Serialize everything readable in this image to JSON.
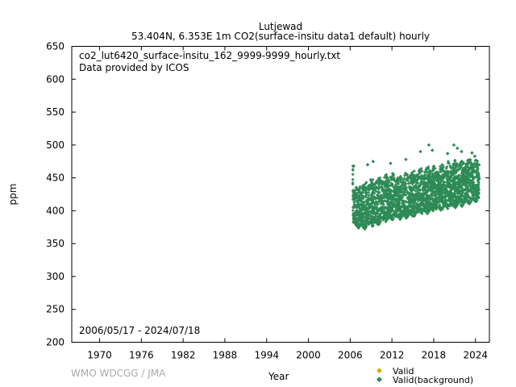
{
  "header": {
    "station": "Lutjewad",
    "subtitle": "53.404N, 6.353E 1m    CO2(surface-insitu data1 default) hourly"
  },
  "notes": {
    "filename": "co2_lut6420_surface-insitu_162_9999-9999_hourly.txt",
    "provider": "Data provided by ICOS",
    "date_range": "2006/05/17 - 2024/07/18"
  },
  "footer": {
    "credit": "WMO WDCGG / JMA"
  },
  "legend": {
    "items": [
      {
        "label": "Valid",
        "color": "#d4b000"
      },
      {
        "label": "Valid(background)",
        "color": "#2e8b57"
      }
    ]
  },
  "chart_data": {
    "type": "scatter",
    "xlabel": "Year",
    "ylabel": "ppm",
    "xlim": [
      1966,
      2026
    ],
    "ylim": [
      200,
      650
    ],
    "x_ticks": [
      1970,
      1976,
      1982,
      1988,
      1994,
      2000,
      2006,
      2012,
      2018,
      2024
    ],
    "y_ticks": [
      200,
      250,
      300,
      350,
      400,
      450,
      500,
      550,
      600,
      650
    ],
    "grid": false,
    "legend_position": "bottom-right",
    "series": [
      {
        "name": "Valid(background)",
        "color": "#2e8b57",
        "x_range": [
          2006.37,
          2024.55
        ],
        "envelope": [
          {
            "x": 2006.4,
            "low": 378,
            "high": 440
          },
          {
            "x": 2007.0,
            "low": 372,
            "high": 440
          },
          {
            "x": 2008.0,
            "low": 372,
            "high": 445
          },
          {
            "x": 2009.0,
            "low": 373,
            "high": 450
          },
          {
            "x": 2010.0,
            "low": 378,
            "high": 452
          },
          {
            "x": 2011.0,
            "low": 382,
            "high": 455
          },
          {
            "x": 2012.0,
            "low": 385,
            "high": 458
          },
          {
            "x": 2013.0,
            "low": 385,
            "high": 455
          },
          {
            "x": 2014.0,
            "low": 388,
            "high": 460
          },
          {
            "x": 2015.0,
            "low": 390,
            "high": 462
          },
          {
            "x": 2016.0,
            "low": 392,
            "high": 465
          },
          {
            "x": 2017.0,
            "low": 395,
            "high": 468
          },
          {
            "x": 2018.0,
            "low": 398,
            "high": 470
          },
          {
            "x": 2019.0,
            "low": 400,
            "high": 472
          },
          {
            "x": 2020.0,
            "low": 402,
            "high": 475
          },
          {
            "x": 2021.0,
            "low": 404,
            "high": 478
          },
          {
            "x": 2022.0,
            "low": 406,
            "high": 478
          },
          {
            "x": 2023.0,
            "low": 410,
            "high": 480
          },
          {
            "x": 2024.55,
            "low": 414,
            "high": 478
          }
        ],
        "outliers": [
          {
            "x": 2006.5,
            "y": 468
          },
          {
            "x": 2008.5,
            "y": 470
          },
          {
            "x": 2009.3,
            "y": 475
          },
          {
            "x": 2011.8,
            "y": 472
          },
          {
            "x": 2014.0,
            "y": 478
          },
          {
            "x": 2016.1,
            "y": 490
          },
          {
            "x": 2017.3,
            "y": 500
          },
          {
            "x": 2017.8,
            "y": 492
          },
          {
            "x": 2020.0,
            "y": 487
          },
          {
            "x": 2020.9,
            "y": 500
          },
          {
            "x": 2021.4,
            "y": 495
          },
          {
            "x": 2022.0,
            "y": 490
          },
          {
            "x": 2023.5,
            "y": 488
          },
          {
            "x": 2023.9,
            "y": 483
          }
        ]
      }
    ]
  }
}
